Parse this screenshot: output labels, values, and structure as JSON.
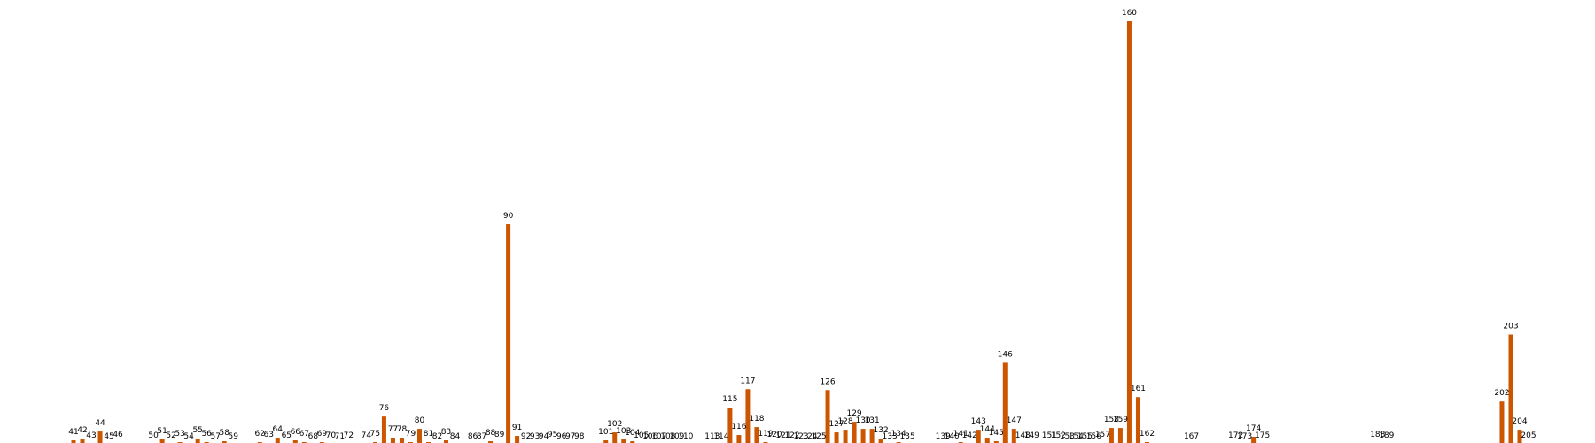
{
  "chart_data": {
    "type": "bar",
    "bar_color": "#cc5500",
    "background": "#ffffff",
    "axes_visible": false,
    "grid": false,
    "ylim": [
      0,
      480
    ],
    "x": [
      41,
      42,
      43,
      44,
      45,
      46,
      50,
      51,
      52,
      53,
      54,
      55,
      56,
      57,
      58,
      59,
      62,
      63,
      64,
      65,
      66,
      67,
      68,
      69,
      70,
      71,
      72,
      74,
      75,
      76,
      77,
      78,
      79,
      80,
      81,
      82,
      83,
      84,
      86,
      87,
      88,
      89,
      90,
      91,
      92,
      93,
      94,
      95,
      96,
      97,
      98,
      101,
      102,
      103,
      104,
      105,
      106,
      107,
      108,
      109,
      110,
      113,
      114,
      115,
      116,
      117,
      118,
      119,
      120,
      121,
      122,
      123,
      124,
      125,
      126,
      127,
      128,
      129,
      130,
      131,
      132,
      133,
      134,
      135,
      139,
      140,
      141,
      142,
      143,
      144,
      145,
      146,
      147,
      148,
      149,
      151,
      152,
      153,
      154,
      155,
      156,
      157,
      158,
      159,
      160,
      161,
      162,
      167,
      172,
      173,
      174,
      175,
      188,
      189,
      202,
      203,
      204,
      205
    ],
    "values": [
      5,
      7,
      1,
      15,
      0,
      2,
      1,
      6,
      1,
      3,
      0,
      7,
      3,
      0,
      4,
      0,
      3,
      2,
      8,
      1,
      5,
      3,
      0,
      3,
      1,
      0,
      1,
      1,
      3,
      32,
      8,
      8,
      3,
      18,
      3,
      0,
      5,
      0,
      0,
      0,
      4,
      2,
      250,
      10,
      0,
      0,
      0,
      2,
      0,
      0,
      0,
      5,
      14,
      6,
      4,
      1,
      0,
      0,
      0,
      0,
      0,
      0,
      0,
      42,
      11,
      63,
      20,
      3,
      2,
      1,
      1,
      0,
      0,
      0,
      62,
      14,
      17,
      26,
      18,
      18,
      7,
      0,
      3,
      0,
      0,
      0,
      3,
      1,
      17,
      8,
      4,
      93,
      18,
      1,
      1,
      1,
      1,
      0,
      0,
      0,
      0,
      2,
      19,
      19,
      480,
      54,
      3,
      0,
      1,
      0,
      9,
      1,
      2,
      1,
      49,
      125,
      17,
      1
    ]
  }
}
